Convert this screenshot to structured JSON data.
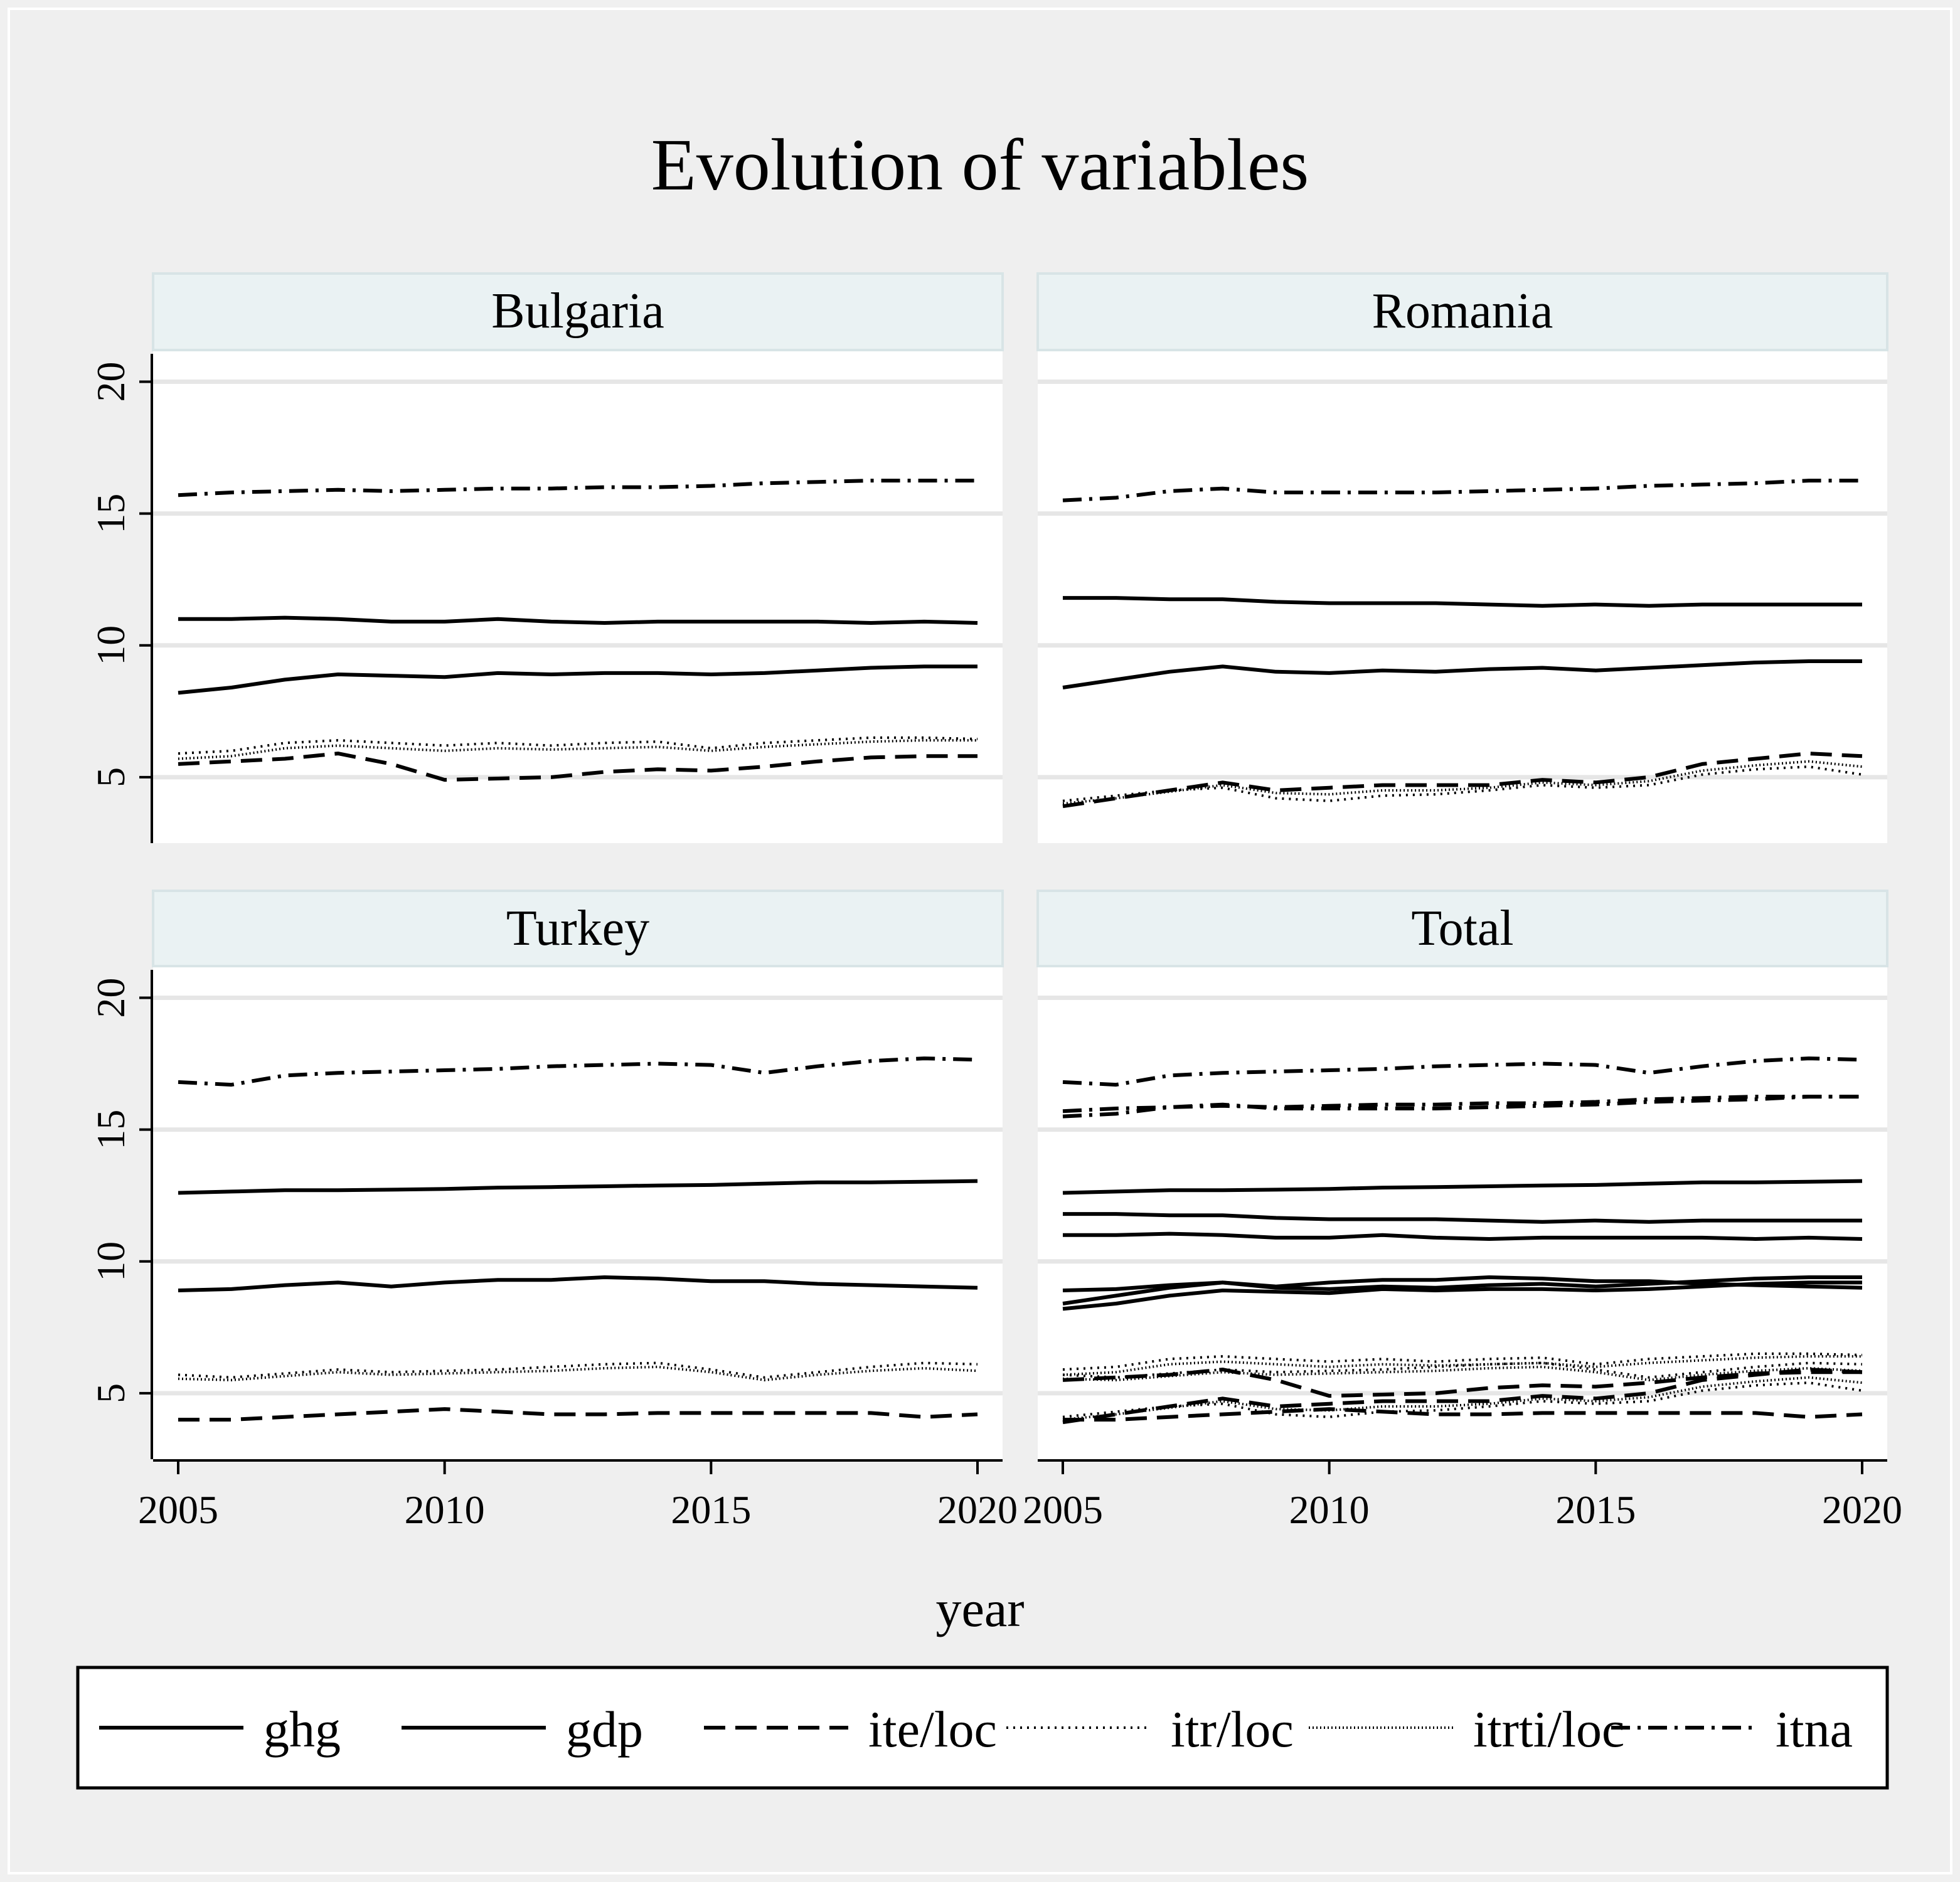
{
  "chart_data": {
    "type": "line",
    "title": "Evolution of variables",
    "xlabel": "year",
    "ylabel": "",
    "xlim": [
      2005,
      2020
    ],
    "ylim": [
      2.5,
      21.2
    ],
    "x_ticks": [
      2005,
      2010,
      2015,
      2020
    ],
    "y_ticks": [
      5,
      10,
      15,
      20
    ],
    "x_tick_labels": [
      "2005",
      "2010",
      "2015",
      "2020"
    ],
    "y_tick_labels": [
      "5",
      "10",
      "15",
      "20"
    ],
    "grid": true,
    "legend_placement": "bottom",
    "legend": [
      {
        "key": "ghg",
        "label": "ghg",
        "dash": "solid"
      },
      {
        "key": "gdp",
        "label": "gdp",
        "dash": "solid"
      },
      {
        "key": "ite",
        "label": "ite/loc",
        "dash": "dash"
      },
      {
        "key": "itr",
        "label": "itr/loc",
        "dash": "dot"
      },
      {
        "key": "itrti",
        "label": "itrti/loc",
        "dash": "dense-dot"
      },
      {
        "key": "itna",
        "label": "itna",
        "dash": "dash-dot"
      }
    ],
    "x": [
      2005,
      2006,
      2007,
      2008,
      2009,
      2010,
      2011,
      2012,
      2013,
      2014,
      2015,
      2016,
      2017,
      2018,
      2019,
      2020
    ],
    "panels": [
      {
        "name": "Bulgaria",
        "series": [
          {
            "name": "ghg",
            "values": [
              11.0,
              11.0,
              11.05,
              11.0,
              10.9,
              10.9,
              11.0,
              10.9,
              10.85,
              10.9,
              10.9,
              10.9,
              10.9,
              10.85,
              10.9,
              10.85
            ]
          },
          {
            "name": "gdp",
            "values": [
              8.2,
              8.4,
              8.7,
              8.9,
              8.85,
              8.8,
              8.95,
              8.9,
              8.95,
              8.95,
              8.9,
              8.95,
              9.05,
              9.15,
              9.2,
              9.2
            ]
          },
          {
            "name": "ite/loc",
            "values": [
              5.5,
              5.6,
              5.7,
              5.9,
              5.5,
              4.9,
              4.95,
              5.0,
              5.2,
              5.3,
              5.25,
              5.4,
              5.6,
              5.75,
              5.8,
              5.8
            ]
          },
          {
            "name": "itr/loc",
            "values": [
              5.9,
              6.0,
              6.3,
              6.4,
              6.3,
              6.2,
              6.3,
              6.2,
              6.3,
              6.35,
              6.1,
              6.3,
              6.4,
              6.5,
              6.5,
              6.45
            ]
          },
          {
            "name": "itrti/loc",
            "values": [
              5.7,
              5.8,
              6.1,
              6.2,
              6.1,
              6.0,
              6.1,
              6.05,
              6.1,
              6.15,
              6.0,
              6.15,
              6.25,
              6.35,
              6.4,
              6.4
            ]
          },
          {
            "name": "itna",
            "values": [
              15.7,
              15.8,
              15.85,
              15.9,
              15.85,
              15.9,
              15.95,
              15.95,
              16.0,
              16.0,
              16.05,
              16.15,
              16.2,
              16.25,
              16.25,
              16.25
            ]
          }
        ]
      },
      {
        "name": "Romania",
        "series": [
          {
            "name": "ghg",
            "values": [
              11.8,
              11.8,
              11.75,
              11.75,
              11.65,
              11.6,
              11.6,
              11.6,
              11.55,
              11.5,
              11.55,
              11.5,
              11.55,
              11.55,
              11.55,
              11.55
            ]
          },
          {
            "name": "gdp",
            "values": [
              8.4,
              8.7,
              9.0,
              9.2,
              9.0,
              8.95,
              9.05,
              9.0,
              9.1,
              9.15,
              9.05,
              9.15,
              9.25,
              9.35,
              9.4,
              9.4
            ]
          },
          {
            "name": "ite/loc",
            "values": [
              3.9,
              4.2,
              4.5,
              4.8,
              4.5,
              4.6,
              4.7,
              4.7,
              4.7,
              4.9,
              4.8,
              5.0,
              5.5,
              5.7,
              5.9,
              5.8
            ]
          },
          {
            "name": "itr/loc",
            "values": [
              4.1,
              4.3,
              4.5,
              4.6,
              4.2,
              4.1,
              4.3,
              4.35,
              4.5,
              4.7,
              4.6,
              4.7,
              5.1,
              5.3,
              5.4,
              5.1
            ]
          },
          {
            "name": "itrti/loc",
            "values": [
              4.0,
              4.2,
              4.45,
              4.7,
              4.4,
              4.35,
              4.5,
              4.5,
              4.6,
              4.8,
              4.7,
              4.85,
              5.25,
              5.45,
              5.6,
              5.4
            ]
          },
          {
            "name": "itna",
            "values": [
              15.5,
              15.6,
              15.85,
              15.95,
              15.8,
              15.8,
              15.8,
              15.8,
              15.85,
              15.9,
              15.95,
              16.05,
              16.1,
              16.15,
              16.25,
              16.25
            ]
          }
        ]
      },
      {
        "name": "Turkey",
        "series": [
          {
            "name": "ghg",
            "values": [
              12.6,
              12.65,
              12.7,
              12.7,
              12.72,
              12.75,
              12.8,
              12.82,
              12.85,
              12.88,
              12.9,
              12.95,
              13.0,
              13.0,
              13.02,
              13.05
            ]
          },
          {
            "name": "gdp",
            "values": [
              8.9,
              8.95,
              9.1,
              9.2,
              9.05,
              9.2,
              9.3,
              9.3,
              9.4,
              9.35,
              9.25,
              9.25,
              9.15,
              9.1,
              9.05,
              9.0
            ]
          },
          {
            "name": "ite/loc",
            "values": [
              4.0,
              4.0,
              4.1,
              4.2,
              4.3,
              4.4,
              4.3,
              4.2,
              4.2,
              4.25,
              4.25,
              4.25,
              4.25,
              4.25,
              4.1,
              4.2
            ]
          },
          {
            "name": "itr/loc",
            "values": [
              5.7,
              5.6,
              5.75,
              5.9,
              5.8,
              5.85,
              5.9,
              6.0,
              6.1,
              6.15,
              5.9,
              5.6,
              5.8,
              6.0,
              6.15,
              6.1
            ]
          },
          {
            "name": "itrti/loc",
            "values": [
              5.55,
              5.5,
              5.65,
              5.8,
              5.7,
              5.75,
              5.8,
              5.85,
              5.95,
              6.0,
              5.8,
              5.5,
              5.7,
              5.85,
              5.95,
              5.85
            ]
          },
          {
            "name": "itna",
            "values": [
              16.8,
              16.7,
              17.05,
              17.15,
              17.2,
              17.25,
              17.3,
              17.4,
              17.45,
              17.5,
              17.45,
              17.15,
              17.4,
              17.6,
              17.7,
              17.65
            ]
          }
        ]
      },
      {
        "name": "Total",
        "combined": true
      }
    ]
  }
}
